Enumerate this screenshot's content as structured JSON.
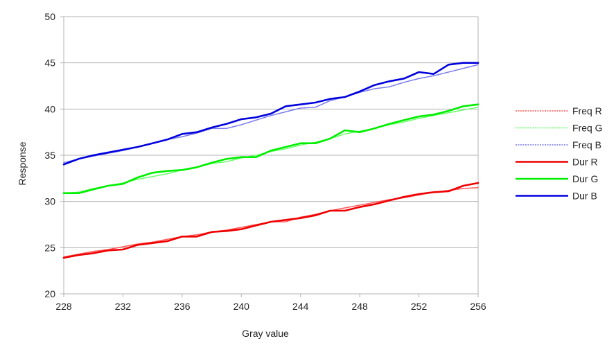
{
  "chart_data": {
    "type": "line",
    "title": "",
    "xlabel": "Gray value",
    "ylabel": "Response",
    "xlim": [
      228,
      256
    ],
    "ylim": [
      20,
      50
    ],
    "xticks": [
      228,
      232,
      236,
      240,
      244,
      248,
      252,
      256
    ],
    "yticks": [
      20,
      25,
      30,
      35,
      40,
      45,
      50
    ],
    "grid": "horizontal",
    "legend_position": "right",
    "x": [
      228,
      229,
      230,
      231,
      232,
      233,
      234,
      235,
      236,
      237,
      238,
      239,
      240,
      241,
      242,
      243,
      244,
      245,
      246,
      247,
      248,
      249,
      250,
      251,
      252,
      253,
      254,
      255,
      256
    ],
    "series": [
      {
        "name": "Freq R",
        "color": "#ff5555",
        "style": "dotted",
        "values": [
          24.0,
          24.3,
          24.6,
          24.8,
          25.1,
          25.4,
          25.6,
          25.9,
          26.2,
          26.4,
          26.7,
          26.9,
          27.2,
          27.5,
          27.8,
          27.8,
          28.3,
          28.6,
          29.0,
          29.3,
          29.6,
          29.9,
          30.2,
          30.4,
          30.7,
          31.0,
          31.2,
          31.4,
          31.5
        ]
      },
      {
        "name": "Freq G",
        "color": "#66ff66",
        "style": "dotted",
        "values": [
          30.9,
          31.0,
          31.4,
          31.7,
          32.0,
          32.4,
          32.7,
          33.0,
          33.4,
          33.7,
          34.1,
          34.3,
          34.7,
          35.0,
          35.4,
          35.7,
          36.1,
          36.4,
          36.8,
          37.3,
          37.6,
          37.9,
          38.3,
          38.6,
          39.0,
          39.3,
          39.6,
          39.9,
          40.2
        ]
      },
      {
        "name": "Freq B",
        "color": "#7777ee",
        "style": "dotted",
        "values": [
          34.2,
          34.6,
          34.9,
          35.2,
          35.5,
          35.9,
          36.3,
          36.7,
          37.0,
          37.4,
          37.9,
          37.9,
          38.3,
          38.8,
          39.3,
          39.7,
          40.1,
          40.2,
          40.9,
          41.3,
          41.8,
          42.2,
          42.4,
          42.9,
          43.3,
          43.6,
          44.0,
          44.4,
          44.8
        ]
      },
      {
        "name": "Dur R",
        "color": "#ee0000",
        "style": "solid",
        "values": [
          23.9,
          24.2,
          24.4,
          24.7,
          24.8,
          25.3,
          25.5,
          25.7,
          26.2,
          26.2,
          26.7,
          26.8,
          27.0,
          27.4,
          27.8,
          28.0,
          28.2,
          28.5,
          29.0,
          29.0,
          29.4,
          29.7,
          30.1,
          30.5,
          30.8,
          31.0,
          31.1,
          31.7,
          32.0
        ]
      },
      {
        "name": "Dur G",
        "color": "#00ee00",
        "style": "solid",
        "values": [
          30.9,
          30.9,
          31.3,
          31.7,
          31.9,
          32.6,
          33.1,
          33.3,
          33.4,
          33.7,
          34.2,
          34.6,
          34.8,
          34.8,
          35.5,
          35.9,
          36.3,
          36.3,
          36.8,
          37.7,
          37.5,
          37.9,
          38.4,
          38.8,
          39.2,
          39.4,
          39.8,
          40.3,
          40.5
        ]
      },
      {
        "name": "Dur B",
        "color": "#0000dd",
        "style": "solid",
        "values": [
          34.0,
          34.6,
          35.0,
          35.3,
          35.6,
          35.9,
          36.3,
          36.7,
          37.3,
          37.5,
          38.0,
          38.4,
          38.9,
          39.1,
          39.5,
          40.3,
          40.5,
          40.7,
          41.1,
          41.3,
          41.9,
          42.6,
          43.0,
          43.3,
          44.0,
          43.8,
          44.8,
          45.0,
          45.0
        ]
      }
    ]
  }
}
